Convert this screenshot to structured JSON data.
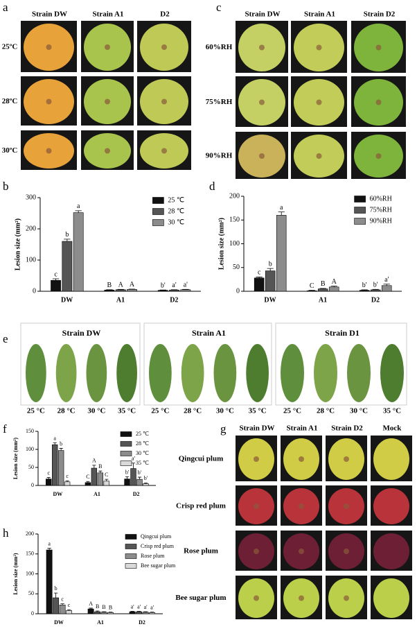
{
  "photo_panels": [
    {
      "label": "a",
      "columns": [
        "Strain DW",
        "Strain A1",
        "D2"
      ],
      "rows": [
        "25ºC",
        "28ºC",
        "30ºC"
      ]
    },
    {
      "label": "c",
      "columns": [
        "Strain DW",
        "Strain A1",
        "Strain D2"
      ],
      "rows": [
        "60%RH",
        "75%RH",
        "90%RH"
      ]
    },
    {
      "label": "e",
      "groups": [
        {
          "title": "Strain DW",
          "items": [
            "25 °C",
            "28 °C",
            "30 °C",
            "35 °C"
          ]
        },
        {
          "title": "Strain A1",
          "items": [
            "25 °C",
            "28 °C",
            "30 °C",
            "35 °C"
          ]
        },
        {
          "title": "Strain D1",
          "items": [
            "25 °C",
            "28 °C",
            "30 °C",
            "35 °C"
          ]
        }
      ]
    },
    {
      "label": "g",
      "columns": [
        "Strain DW",
        "Strain A1",
        "Strain D2",
        "Mock"
      ],
      "rows": [
        "Qingcui plum",
        "Crisp red plum",
        "Rose plum",
        "Bee sugar plum"
      ]
    }
  ],
  "chart_data": [
    {
      "type": "bar",
      "panel": "b",
      "ylabel": "Lesion size (mm²)",
      "categories": [
        "DW",
        "A1",
        "D2"
      ],
      "ylim": [
        0,
        300
      ],
      "yticks": [
        0,
        100,
        200,
        300
      ],
      "legend": "upper right",
      "series": [
        {
          "name": "25 ℃",
          "color": "#111111",
          "values": [
            35,
            4,
            3
          ],
          "errors": [
            5,
            1,
            1
          ],
          "letters": [
            "c",
            "B",
            "b'"
          ]
        },
        {
          "name": "28 ℃",
          "color": "#555555",
          "values": [
            160,
            5,
            4
          ],
          "errors": [
            7,
            1,
            1
          ],
          "letters": [
            "b",
            "A",
            "a'"
          ]
        },
        {
          "name": "30 ℃",
          "color": "#8c8c8c",
          "values": [
            252,
            6,
            5
          ],
          "errors": [
            6,
            1,
            1
          ],
          "letters": [
            "a",
            "A",
            "a'"
          ]
        }
      ]
    },
    {
      "type": "bar",
      "panel": "d",
      "ylabel": "Lesion size (mm²)",
      "categories": [
        "DW",
        "A1",
        "D2"
      ],
      "ylim": [
        0,
        200
      ],
      "yticks": [
        0,
        50,
        100,
        150,
        200
      ],
      "legend": "upper right",
      "series": [
        {
          "name": "60%RH",
          "color": "#111111",
          "values": [
            28,
            1,
            2
          ],
          "errors": [
            2,
            1,
            1
          ],
          "letters": [
            "c",
            "C",
            "b'"
          ]
        },
        {
          "name": "75%RH",
          "color": "#555555",
          "values": [
            43,
            5,
            3
          ],
          "errors": [
            5,
            1,
            1
          ],
          "letters": [
            "b",
            "B",
            "b'"
          ]
        },
        {
          "name": "90%RH",
          "color": "#8c8c8c",
          "values": [
            160,
            9,
            12
          ],
          "errors": [
            7,
            2,
            3
          ],
          "letters": [
            "a",
            "A",
            "a'"
          ]
        }
      ]
    },
    {
      "type": "bar",
      "panel": "f",
      "ylabel": "Lesion size (mm²)",
      "categories": [
        "DW",
        "A1",
        "D2"
      ],
      "ylim": [
        0,
        150
      ],
      "yticks": [
        0,
        50,
        100,
        150
      ],
      "legend": "upper right",
      "series": [
        {
          "name": "25 ℃",
          "color": "#111111",
          "values": [
            18,
            8,
            18
          ],
          "errors": [
            4,
            3,
            6
          ],
          "letters": [
            "c",
            "C",
            "b'"
          ]
        },
        {
          "name": "28 ℃",
          "color": "#555555",
          "values": [
            113,
            48,
            47
          ],
          "errors": [
            5,
            8,
            15
          ],
          "letters": [
            "a",
            "A",
            "a'"
          ]
        },
        {
          "name": "30 ℃",
          "color": "#8c8c8c",
          "values": [
            97,
            35,
            17
          ],
          "errors": [
            6,
            5,
            6
          ],
          "letters": [
            "b",
            "B",
            "b'"
          ]
        },
        {
          "name": "35 ℃",
          "color": "#d9d9d9",
          "values": [
            10,
            12,
            5
          ],
          "errors": [
            3,
            5,
            2
          ],
          "letters": [
            "c",
            "C",
            "b'"
          ]
        }
      ]
    },
    {
      "type": "bar",
      "panel": "h",
      "ylabel": "Lesion size (mm²)",
      "categories": [
        "DW",
        "A1",
        "D2"
      ],
      "ylim": [
        0,
        200
      ],
      "yticks": [
        0,
        50,
        100,
        150,
        200
      ],
      "legend": "upper right",
      "series": [
        {
          "name": "Qingcui plum",
          "color": "#111111",
          "values": [
            160,
            12,
            5
          ],
          "errors": [
            4,
            2,
            1
          ],
          "letters": [
            "a",
            "A",
            "a'"
          ]
        },
        {
          "name": "Crisp red plum",
          "color": "#555555",
          "values": [
            40,
            5,
            5
          ],
          "errors": [
            12,
            2,
            1
          ],
          "letters": [
            "b",
            "B",
            "a'"
          ]
        },
        {
          "name": "Rose plum",
          "color": "#8c8c8c",
          "values": [
            22,
            4,
            4
          ],
          "errors": [
            3,
            1,
            1
          ],
          "letters": [
            "c",
            "B",
            "a'"
          ]
        },
        {
          "name": "Bee sugar plum",
          "color": "#d9d9d9",
          "values": [
            8,
            3,
            3
          ],
          "errors": [
            2,
            1,
            1
          ],
          "letters": [
            "c",
            "B",
            "a'"
          ]
        }
      ]
    }
  ]
}
